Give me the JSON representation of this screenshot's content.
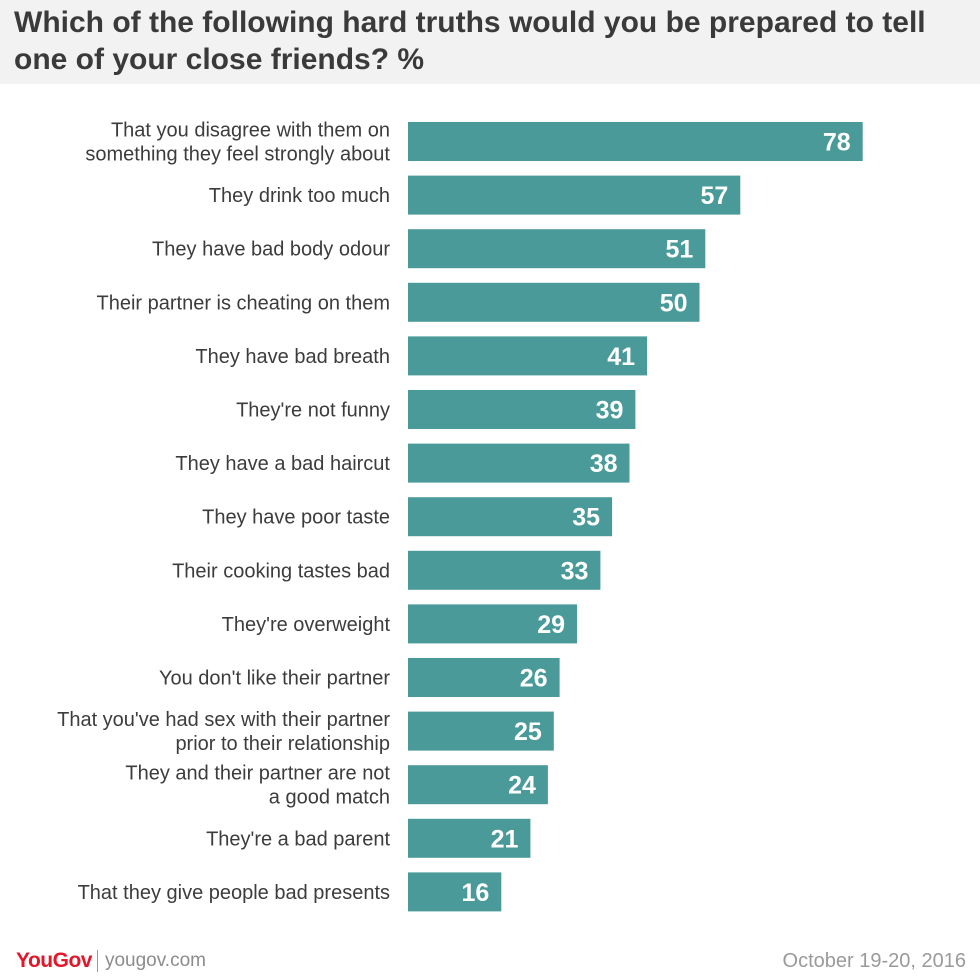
{
  "title": "Which of the following hard truths would you be prepared to tell one of your close friends? %",
  "footer": {
    "logo": "YouGov",
    "site": "yougov.com",
    "date": "October 19-20, 2016"
  },
  "colors": {
    "bar": "#4a9a9a",
    "label": "#3c3c3c",
    "value": "#ffffff",
    "header_bg": "#f2f2f2",
    "logo": "#e4162a"
  },
  "chart_data": {
    "type": "bar",
    "orientation": "horizontal",
    "categories": [
      [
        "That you disagree with them on",
        "something they feel strongly about"
      ],
      [
        "They drink too much"
      ],
      [
        "They have bad body odour"
      ],
      [
        "Their partner is cheating on them"
      ],
      [
        "They have bad breath"
      ],
      [
        "They're not funny"
      ],
      [
        "They have a bad haircut"
      ],
      [
        "They have poor taste"
      ],
      [
        "Their cooking tastes bad"
      ],
      [
        "They're overweight"
      ],
      [
        "You don't like their partner"
      ],
      [
        "That you've had sex with their partner",
        "prior to their relationship"
      ],
      [
        "They and their partner are not",
        "a good match"
      ],
      [
        "They're a bad parent"
      ],
      [
        "That they give people bad presents"
      ]
    ],
    "values": [
      78,
      57,
      51,
      50,
      41,
      39,
      38,
      35,
      33,
      29,
      26,
      25,
      24,
      21,
      16
    ],
    "xlim": [
      0,
      100
    ],
    "grid": false,
    "legend": "none"
  }
}
